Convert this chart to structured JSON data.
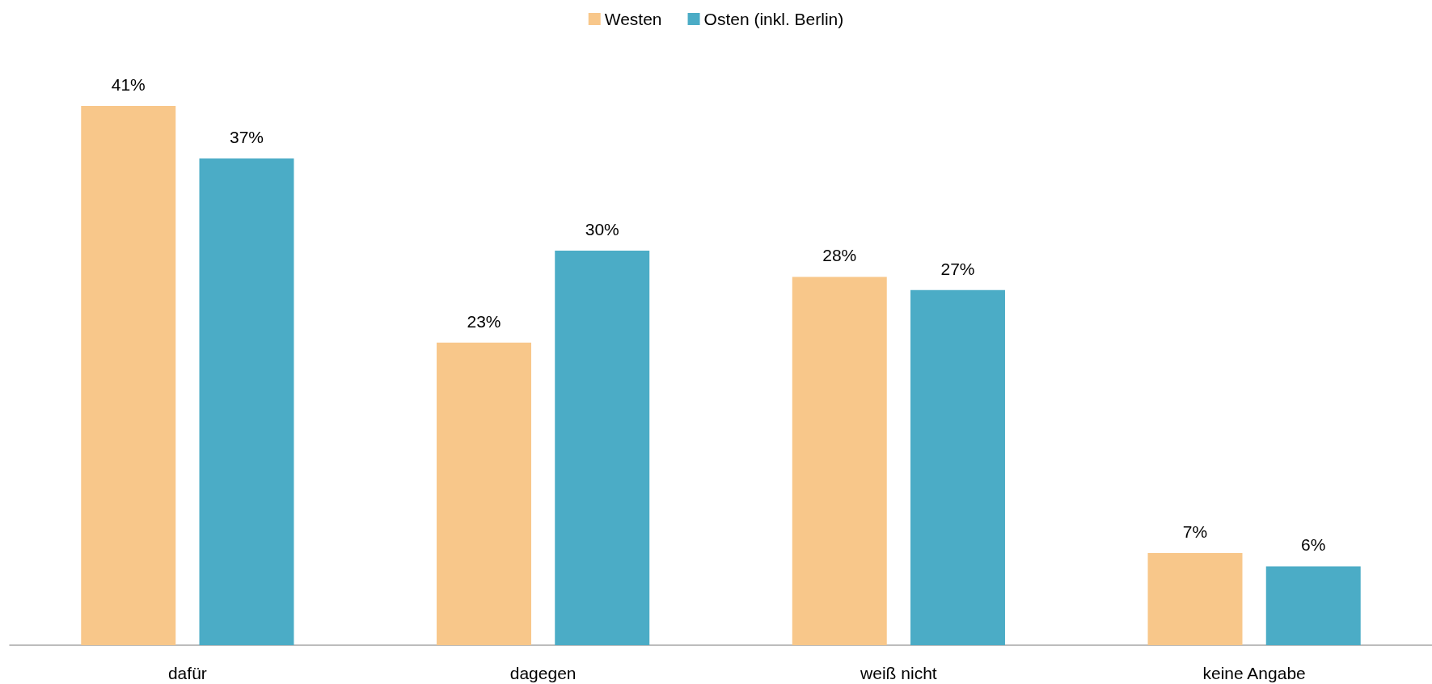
{
  "chart_data": {
    "type": "bar",
    "categories": [
      "dafür",
      "dagegen",
      "weiß nicht",
      "keine Angabe"
    ],
    "series": [
      {
        "name": "Westen",
        "color": "#f8c78a",
        "values": [
          41,
          23,
          28,
          7
        ],
        "value_labels": [
          "41%",
          "23%",
          "28%",
          "7%"
        ]
      },
      {
        "name": "Osten (inkl. Berlin)",
        "color": "#4bacc6",
        "values": [
          37,
          30,
          27,
          6
        ],
        "value_labels": [
          "37%",
          "30%",
          "27%",
          "6%"
        ]
      }
    ],
    "legend": "top",
    "grid": false,
    "tick_labels": "x"
  }
}
